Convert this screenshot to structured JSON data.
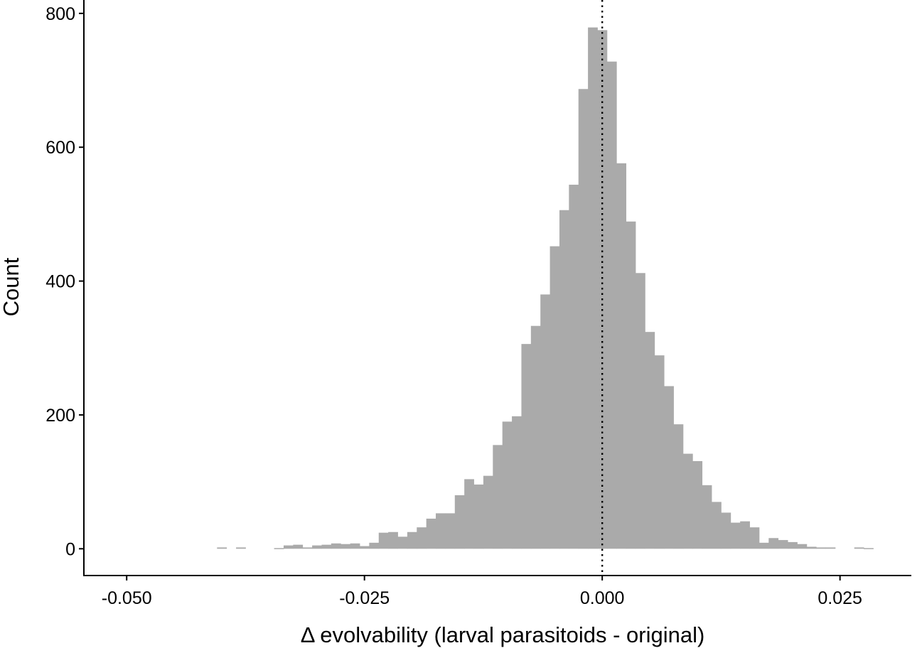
{
  "chart_data": {
    "type": "bar",
    "subtype": "histogram",
    "xlabel": "Δ evolvability (larval parasitoids - original)",
    "ylabel": "Count",
    "xlim": [
      -0.0545,
      0.0325
    ],
    "ylim": [
      -40,
      820
    ],
    "x_ticks": [
      -0.05,
      -0.025,
      0.0,
      0.025
    ],
    "x_tick_labels": [
      "-0.050",
      "-0.025",
      "0.000",
      "0.025"
    ],
    "y_ticks": [
      0,
      200,
      400,
      600,
      800
    ],
    "y_tick_labels": [
      "0",
      "200",
      "400",
      "600",
      "800"
    ],
    "bin_width": 0.001,
    "reference_line": {
      "x": 0.0,
      "style": "dotted",
      "color": "#000000"
    },
    "bar_color": "#aaaaaa",
    "grid": false,
    "bins": [
      {
        "x0": -0.0405,
        "count": 2
      },
      {
        "x0": -0.0385,
        "count": 2
      },
      {
        "x0": -0.0345,
        "count": 1
      },
      {
        "x0": -0.0335,
        "count": 5
      },
      {
        "x0": -0.0325,
        "count": 6
      },
      {
        "x0": -0.0315,
        "count": 2
      },
      {
        "x0": -0.0305,
        "count": 5
      },
      {
        "x0": -0.0295,
        "count": 6
      },
      {
        "x0": -0.0285,
        "count": 8
      },
      {
        "x0": -0.0275,
        "count": 7
      },
      {
        "x0": -0.0265,
        "count": 8
      },
      {
        "x0": -0.0255,
        "count": 4
      },
      {
        "x0": -0.0245,
        "count": 9
      },
      {
        "x0": -0.0235,
        "count": 24
      },
      {
        "x0": -0.0225,
        "count": 25
      },
      {
        "x0": -0.0215,
        "count": 18
      },
      {
        "x0": -0.0205,
        "count": 25
      },
      {
        "x0": -0.0195,
        "count": 32
      },
      {
        "x0": -0.0185,
        "count": 45
      },
      {
        "x0": -0.0175,
        "count": 53
      },
      {
        "x0": -0.0165,
        "count": 53
      },
      {
        "x0": -0.0155,
        "count": 80
      },
      {
        "x0": -0.0145,
        "count": 104
      },
      {
        "x0": -0.0135,
        "count": 96
      },
      {
        "x0": -0.0125,
        "count": 109
      },
      {
        "x0": -0.0115,
        "count": 155
      },
      {
        "x0": -0.0105,
        "count": 190
      },
      {
        "x0": -0.0095,
        "count": 198
      },
      {
        "x0": -0.0085,
        "count": 306
      },
      {
        "x0": -0.0075,
        "count": 333
      },
      {
        "x0": -0.0065,
        "count": 380
      },
      {
        "x0": -0.0055,
        "count": 452
      },
      {
        "x0": -0.0045,
        "count": 506
      },
      {
        "x0": -0.0035,
        "count": 544
      },
      {
        "x0": -0.0025,
        "count": 687
      },
      {
        "x0": -0.0015,
        "count": 779
      },
      {
        "x0": -0.0005,
        "count": 775
      },
      {
        "x0": 0.0005,
        "count": 728
      },
      {
        "x0": 0.0015,
        "count": 576
      },
      {
        "x0": 0.0025,
        "count": 489
      },
      {
        "x0": 0.0035,
        "count": 412
      },
      {
        "x0": 0.0045,
        "count": 324
      },
      {
        "x0": 0.0055,
        "count": 289
      },
      {
        "x0": 0.0065,
        "count": 243
      },
      {
        "x0": 0.0075,
        "count": 186
      },
      {
        "x0": 0.0085,
        "count": 142
      },
      {
        "x0": 0.0095,
        "count": 131
      },
      {
        "x0": 0.0105,
        "count": 95
      },
      {
        "x0": 0.0115,
        "count": 70
      },
      {
        "x0": 0.0125,
        "count": 54
      },
      {
        "x0": 0.0135,
        "count": 39
      },
      {
        "x0": 0.0145,
        "count": 41
      },
      {
        "x0": 0.0155,
        "count": 32
      },
      {
        "x0": 0.0165,
        "count": 9
      },
      {
        "x0": 0.0175,
        "count": 16
      },
      {
        "x0": 0.0185,
        "count": 13
      },
      {
        "x0": 0.0195,
        "count": 10
      },
      {
        "x0": 0.0205,
        "count": 7
      },
      {
        "x0": 0.0215,
        "count": 3
      },
      {
        "x0": 0.0225,
        "count": 2
      },
      {
        "x0": 0.0235,
        "count": 2
      },
      {
        "x0": 0.0265,
        "count": 2
      },
      {
        "x0": 0.0275,
        "count": 1
      }
    ]
  }
}
